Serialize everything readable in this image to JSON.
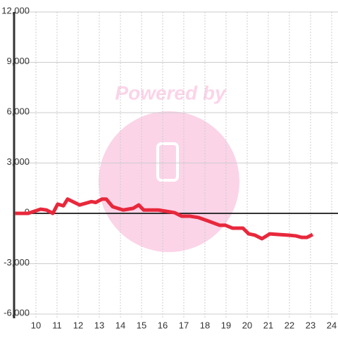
{
  "chart_data": {
    "type": "line",
    "watermark": "Powered by",
    "x": [
      9.0,
      9.63,
      10.23,
      10.5,
      10.8,
      11.03,
      11.3,
      11.5,
      12.07,
      12.63,
      12.83,
      13.13,
      13.33,
      13.63,
      14.13,
      14.6,
      14.87,
      15.1,
      15.8,
      16.13,
      16.57,
      16.9,
      17.3,
      17.7,
      18.17,
      18.7,
      18.97,
      19.3,
      19.8,
      20.07,
      20.37,
      20.7,
      21.07,
      21.47,
      21.97,
      22.3,
      22.57,
      22.83,
      23.1
    ],
    "values": [
      0,
      0,
      250,
      200,
      0,
      550,
      450,
      850,
      500,
      700,
      650,
      850,
      850,
      400,
      200,
      300,
      500,
      200,
      200,
      130,
      40,
      -170,
      -170,
      -250,
      -460,
      -710,
      -710,
      -880,
      -880,
      -1220,
      -1300,
      -1510,
      -1220,
      -1260,
      -1300,
      -1340,
      -1430,
      -1430,
      -1260
    ],
    "color": "#e8283c",
    "xlim": [
      9,
      24.3
    ],
    "xticks": [
      10,
      11,
      12,
      13,
      14,
      15,
      16,
      17,
      18,
      19,
      20,
      21,
      22,
      23,
      24
    ],
    "ylim": [
      -6000,
      12000
    ],
    "yticks": [
      {
        "value": -6000,
        "label": "-6,000"
      },
      {
        "value": -3000,
        "label": "-3,000"
      },
      0,
      {
        "value": 3000,
        "label": "3,000"
      },
      {
        "value": 6000,
        "label": "6,000"
      },
      {
        "value": 9000,
        "label": "9,000"
      },
      {
        "value": 12000,
        "label": "12,000"
      }
    ],
    "grid": true
  }
}
